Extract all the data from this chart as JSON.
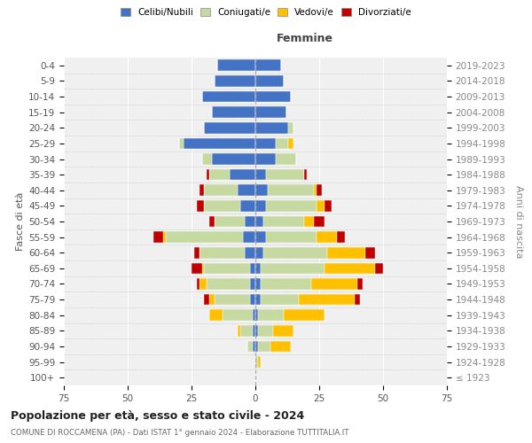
{
  "age_groups": [
    "0-4",
    "5-9",
    "10-14",
    "15-19",
    "20-24",
    "25-29",
    "30-34",
    "35-39",
    "40-44",
    "45-49",
    "50-54",
    "55-59",
    "60-64",
    "65-69",
    "70-74",
    "75-79",
    "80-84",
    "85-89",
    "90-94",
    "95-99",
    "100+"
  ],
  "birth_years": [
    "2019-2023",
    "2014-2018",
    "2009-2013",
    "2004-2008",
    "1999-2003",
    "1994-1998",
    "1989-1993",
    "1984-1988",
    "1979-1983",
    "1974-1978",
    "1969-1973",
    "1964-1968",
    "1959-1963",
    "1954-1958",
    "1949-1953",
    "1944-1948",
    "1939-1943",
    "1934-1938",
    "1929-1933",
    "1924-1928",
    "≤ 1923"
  ],
  "male_celibi": [
    15,
    16,
    21,
    17,
    20,
    28,
    17,
    10,
    7,
    6,
    4,
    5,
    4,
    2,
    2,
    2,
    1,
    1,
    1,
    0,
    0
  ],
  "male_coniugati": [
    0,
    0,
    0,
    0,
    0,
    2,
    4,
    8,
    13,
    14,
    12,
    30,
    18,
    18,
    17,
    14,
    12,
    5,
    2,
    0,
    0
  ],
  "male_vedovi": [
    0,
    0,
    0,
    0,
    0,
    0,
    0,
    0,
    0,
    0,
    0,
    1,
    0,
    1,
    3,
    2,
    5,
    1,
    0,
    0,
    0
  ],
  "male_divorziati": [
    0,
    0,
    0,
    0,
    0,
    0,
    0,
    1,
    2,
    3,
    2,
    4,
    2,
    4,
    1,
    2,
    0,
    0,
    0,
    0,
    0
  ],
  "female_nubili": [
    10,
    11,
    14,
    12,
    13,
    8,
    8,
    4,
    5,
    4,
    3,
    4,
    3,
    2,
    2,
    2,
    1,
    1,
    1,
    0,
    0
  ],
  "female_coniugate": [
    0,
    0,
    0,
    0,
    2,
    5,
    8,
    15,
    18,
    20,
    16,
    20,
    25,
    25,
    20,
    15,
    10,
    6,
    5,
    1,
    0
  ],
  "female_vedove": [
    0,
    0,
    0,
    0,
    0,
    2,
    0,
    0,
    1,
    3,
    4,
    8,
    15,
    20,
    18,
    22,
    16,
    8,
    8,
    1,
    0
  ],
  "female_divorziate": [
    0,
    0,
    0,
    0,
    0,
    0,
    0,
    1,
    2,
    3,
    4,
    3,
    4,
    3,
    2,
    2,
    0,
    0,
    0,
    0,
    0
  ],
  "color_celibi": "#4472c4",
  "color_coniugati": "#c5d9a0",
  "color_vedovi": "#ffc000",
  "color_divorziati": "#c00000",
  "title": "Popolazione per età, sesso e stato civile - 2024",
  "subtitle": "COMUNE DI ROCCAMENA (PA) - Dati ISTAT 1° gennaio 2024 - Elaborazione TUTTITALIA.IT",
  "ylabel_left": "Fasce di età",
  "ylabel_right": "Anni di nascita",
  "label_femmine": "Femmine",
  "xlim": 75,
  "bg_color": "#f0f0f0",
  "legend_labels": [
    "Celibi/Nubili",
    "Coniugati/e",
    "Vedovi/e",
    "Divorziati/e"
  ]
}
